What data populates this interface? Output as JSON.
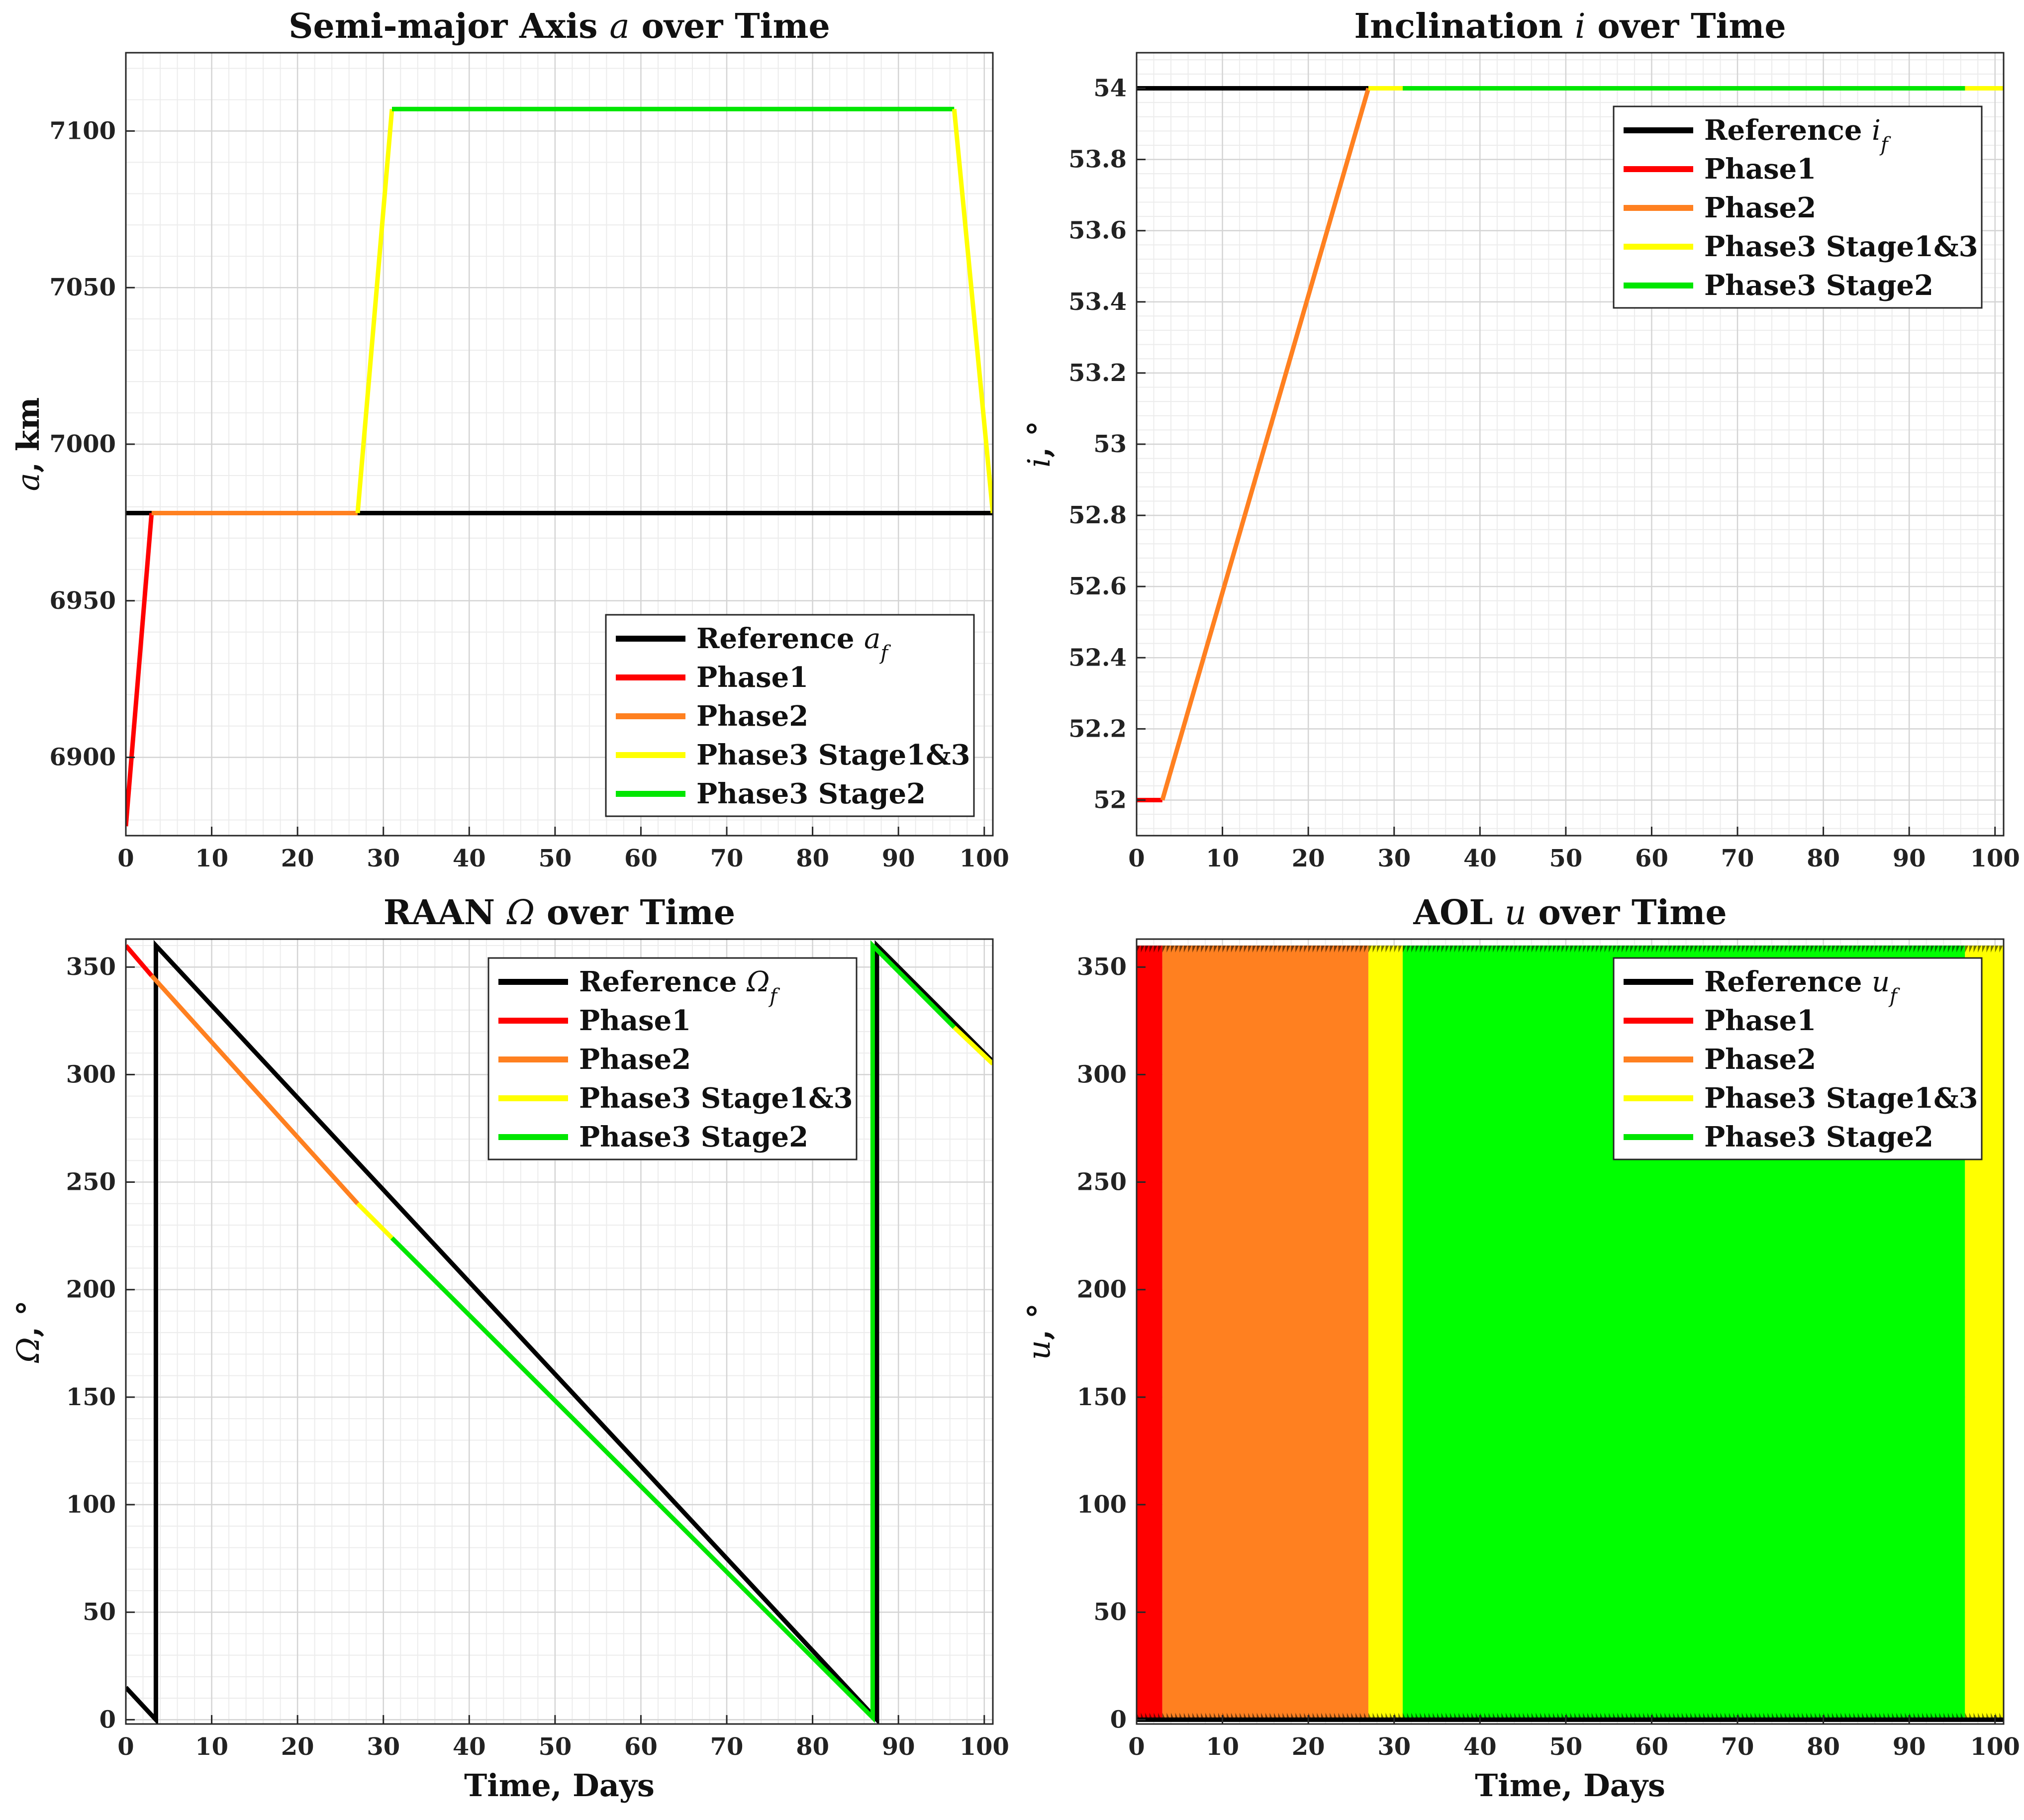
{
  "chart_data": [
    {
      "id": "a",
      "type": "line",
      "title": "Semi-major Axis",
      "title_symbol": "a",
      "title_suffix": "over Time",
      "ylabel_symbol": "a",
      "ylabel_text": ", km",
      "xlabel": "",
      "xlim": [
        0,
        101
      ],
      "ylim": [
        6875,
        7125
      ],
      "xticks": [
        0,
        10,
        20,
        30,
        40,
        50,
        60,
        70,
        80,
        90,
        100
      ],
      "yticks": [
        6900,
        6950,
        7000,
        7050,
        7100
      ],
      "grid": true,
      "legend_position": "bottom-right",
      "legend": [
        {
          "label": "Reference",
          "symbol": "a",
          "sub": "f"
        },
        {
          "label": "Phase1"
        },
        {
          "label": "Phase2"
        },
        {
          "label": "Phase3 Stage1&3"
        },
        {
          "label": "Phase3 Stage2"
        }
      ],
      "series": [
        {
          "name": "Reference a_f",
          "color": "#000000",
          "x": [
            0,
            101
          ],
          "y": [
            6978,
            6978
          ]
        },
        {
          "name": "Phase1",
          "color": "#ff0000",
          "x": [
            0,
            3
          ],
          "y": [
            6878,
            6978
          ]
        },
        {
          "name": "Phase2",
          "color": "#ff8020",
          "x": [
            3,
            27
          ],
          "y": [
            6978,
            6978
          ]
        },
        {
          "name": "Phase3 Stage1&3 (a)",
          "color": "#ffff00",
          "x": [
            27,
            31
          ],
          "y": [
            6978,
            7107
          ]
        },
        {
          "name": "Phase3 Stage2",
          "color": "#00e600",
          "x": [
            31,
            96.5
          ],
          "y": [
            7107,
            7107
          ]
        },
        {
          "name": "Phase3 Stage1&3 (b)",
          "color": "#ffff00",
          "x": [
            96.5,
            101
          ],
          "y": [
            7107,
            6978
          ]
        }
      ]
    },
    {
      "id": "i",
      "type": "line",
      "title": "Inclination",
      "title_symbol": "i",
      "title_suffix": "over Time",
      "ylabel_symbol": "i",
      "ylabel_text": ", °",
      "xlabel": "",
      "xlim": [
        0,
        101
      ],
      "ylim": [
        51.9,
        54.1
      ],
      "xticks": [
        0,
        10,
        20,
        30,
        40,
        50,
        60,
        70,
        80,
        90,
        100
      ],
      "yticks": [
        52,
        52.2,
        52.4,
        52.6,
        52.8,
        53,
        53.2,
        53.4,
        53.6,
        53.8,
        54
      ],
      "grid": true,
      "legend_position": "top-right",
      "legend": [
        {
          "label": "Reference",
          "symbol": "i",
          "sub": "f"
        },
        {
          "label": "Phase1"
        },
        {
          "label": "Phase2"
        },
        {
          "label": "Phase3 Stage1&3"
        },
        {
          "label": "Phase3 Stage2"
        }
      ],
      "series": [
        {
          "name": "Reference i_f",
          "color": "#000000",
          "x": [
            0,
            101
          ],
          "y": [
            54,
            54
          ]
        },
        {
          "name": "Phase1",
          "color": "#ff0000",
          "x": [
            0,
            3
          ],
          "y": [
            52,
            52
          ]
        },
        {
          "name": "Phase2",
          "color": "#ff8020",
          "x": [
            3,
            27
          ],
          "y": [
            52,
            54
          ]
        },
        {
          "name": "Phase3 Stage1&3 (a)",
          "color": "#ffff00",
          "x": [
            27,
            31
          ],
          "y": [
            54,
            54
          ]
        },
        {
          "name": "Phase3 Stage2",
          "color": "#00e600",
          "x": [
            31,
            96.5
          ],
          "y": [
            54,
            54
          ]
        },
        {
          "name": "Phase3 Stage1&3 (b)",
          "color": "#ffff00",
          "x": [
            96.5,
            101
          ],
          "y": [
            54,
            54
          ]
        }
      ]
    },
    {
      "id": "raan",
      "type": "line",
      "title": "RAAN",
      "title_symbol": "Ω",
      "title_suffix": "over Time",
      "ylabel_symbol": "Ω",
      "ylabel_text": ", °",
      "xlabel": "Time, Days",
      "xlim": [
        0,
        101
      ],
      "ylim": [
        -2,
        363
      ],
      "xticks": [
        0,
        10,
        20,
        30,
        40,
        50,
        60,
        70,
        80,
        90,
        100
      ],
      "yticks": [
        0,
        50,
        100,
        150,
        200,
        250,
        300,
        350
      ],
      "grid": true,
      "legend_position": "top-right",
      "legend": [
        {
          "label": "Reference",
          "symbol": "Ω",
          "sub": "f"
        },
        {
          "label": "Phase1"
        },
        {
          "label": "Phase2"
        },
        {
          "label": "Phase3 Stage1&3"
        },
        {
          "label": "Phase3 Stage2"
        }
      ],
      "series": [
        {
          "name": "Reference Ω_f",
          "color": "#000000",
          "x": [
            0,
            3.5,
            3.5,
            87.5,
            87.5,
            101
          ],
          "y": [
            15,
            0,
            360,
            0,
            360,
            306
          ]
        },
        {
          "name": "Phase1",
          "color": "#ff0000",
          "x": [
            0,
            3
          ],
          "y": [
            360,
            346
          ]
        },
        {
          "name": "Phase2",
          "color": "#ff8020",
          "x": [
            3,
            27
          ],
          "y": [
            346,
            240
          ]
        },
        {
          "name": "Phase3 Stage1&3 (a)",
          "color": "#ffff00",
          "x": [
            27,
            31
          ],
          "y": [
            240,
            224
          ]
        },
        {
          "name": "Phase3 Stage2",
          "color": "#00e600",
          "x": [
            31,
            87,
            87,
            96.5
          ],
          "y": [
            224,
            1,
            360,
            322
          ]
        },
        {
          "name": "Phase3 Stage1&3 (b)",
          "color": "#ffff00",
          "x": [
            96.5,
            101
          ],
          "y": [
            322,
            305
          ]
        }
      ]
    },
    {
      "id": "aol",
      "type": "area",
      "title": "AOL",
      "title_symbol": "u",
      "title_suffix": "over Time",
      "ylabel_symbol": "u",
      "ylabel_text": ", °",
      "xlabel": "Time, Days",
      "xlim": [
        0,
        101
      ],
      "ylim": [
        -2,
        363
      ],
      "xticks": [
        0,
        10,
        20,
        30,
        40,
        50,
        60,
        70,
        80,
        90,
        100
      ],
      "yticks": [
        0,
        50,
        100,
        150,
        200,
        250,
        300,
        350
      ],
      "grid": true,
      "legend_position": "top-right",
      "legend": [
        {
          "label": "Reference",
          "symbol": "u",
          "sub": "f"
        },
        {
          "label": "Phase1"
        },
        {
          "label": "Phase2"
        },
        {
          "label": "Phase3 Stage1&3"
        },
        {
          "label": "Phase3 Stage2"
        }
      ],
      "note": "Rapid 0-360 deg oscillation rendered as filled bands",
      "bands": [
        {
          "name": "Phase1",
          "color": "#ff0000",
          "x": [
            0,
            3
          ],
          "y": [
            0,
            360
          ]
        },
        {
          "name": "Phase2",
          "color": "#ff8020",
          "x": [
            3,
            27
          ],
          "y": [
            0,
            360
          ]
        },
        {
          "name": "Phase3 Stage1&3 (a)",
          "color": "#ffff00",
          "x": [
            27,
            31
          ],
          "y": [
            0,
            360
          ]
        },
        {
          "name": "Phase3 Stage2",
          "color": "#00ff00",
          "x": [
            31,
            96.5
          ],
          "y": [
            0,
            360
          ]
        },
        {
          "name": "Phase3 Stage1&3 (b)",
          "color": "#ffff00",
          "x": [
            96.5,
            101
          ],
          "y": [
            0,
            360
          ]
        }
      ],
      "series": [
        {
          "name": "Reference u_f",
          "color": "#000000",
          "x": [
            0,
            101
          ],
          "y": [
            0,
            0
          ]
        }
      ]
    }
  ],
  "legend_colors": [
    "#000000",
    "#ff0000",
    "#ff8020",
    "#ffff00",
    "#00e600"
  ]
}
